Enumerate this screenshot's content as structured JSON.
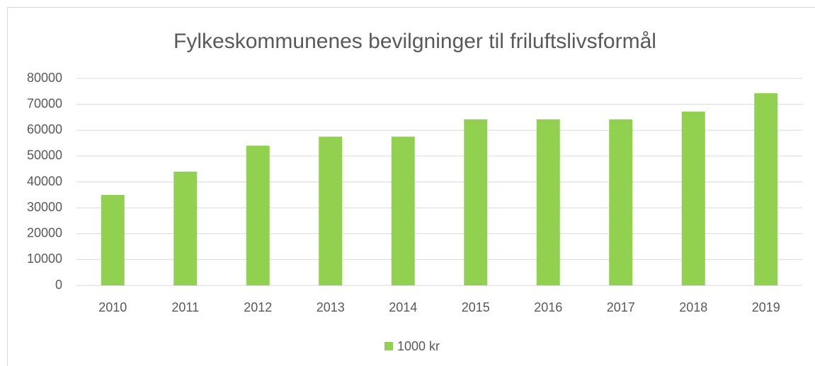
{
  "chart_data": {
    "type": "bar",
    "title": "Fylkeskommunenes bevilgninger til friluftslivsformål",
    "categories": [
      "2010",
      "2011",
      "2012",
      "2013",
      "2014",
      "2015",
      "2016",
      "2017",
      "2018",
      "2019"
    ],
    "series": [
      {
        "name": "1000 kr",
        "color": "#92d050",
        "values": [
          35000,
          44000,
          54000,
          57500,
          57500,
          64200,
          64200,
          64200,
          67200,
          74300
        ]
      }
    ],
    "ylim": [
      0,
      80000
    ],
    "yticks": [
      0,
      10000,
      20000,
      30000,
      40000,
      50000,
      60000,
      70000,
      80000
    ],
    "grid": true,
    "legend": "bottom"
  }
}
